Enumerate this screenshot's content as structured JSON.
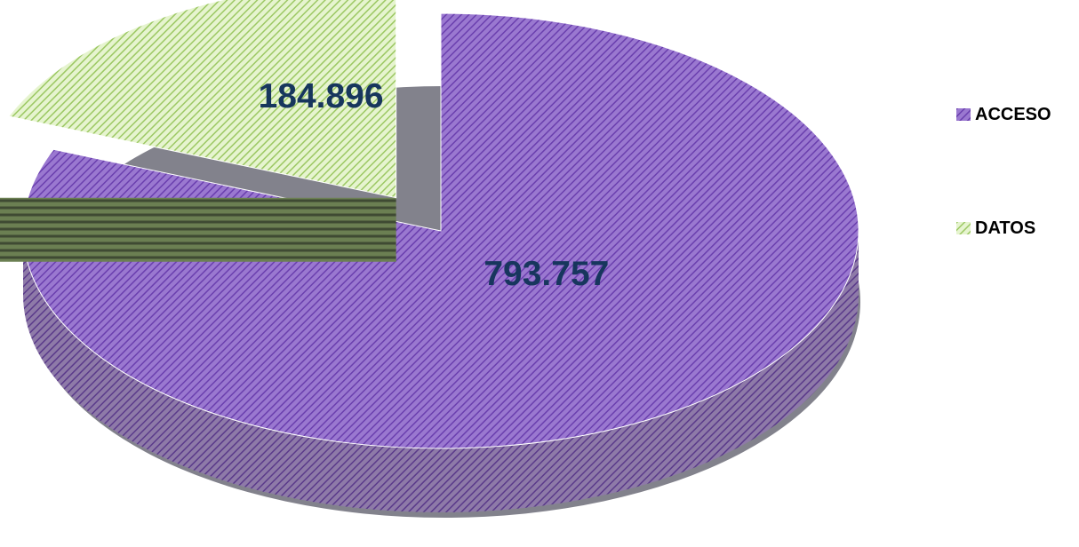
{
  "chart_data": {
    "type": "pie",
    "title": "",
    "categories": [
      "ACCESO",
      "DATOS"
    ],
    "values": [
      793757,
      184896
    ],
    "value_labels": [
      "793.757",
      "184.896"
    ],
    "colors": [
      "#8a63c4",
      "#a9d470"
    ],
    "pattern": "diagonal-stripes",
    "style": "3d-exploded",
    "legend_position": "right"
  },
  "legend": {
    "items": [
      {
        "label": "ACCESO",
        "color": "#8a63c4"
      },
      {
        "label": "DATOS",
        "color": "#a9d470"
      }
    ]
  }
}
